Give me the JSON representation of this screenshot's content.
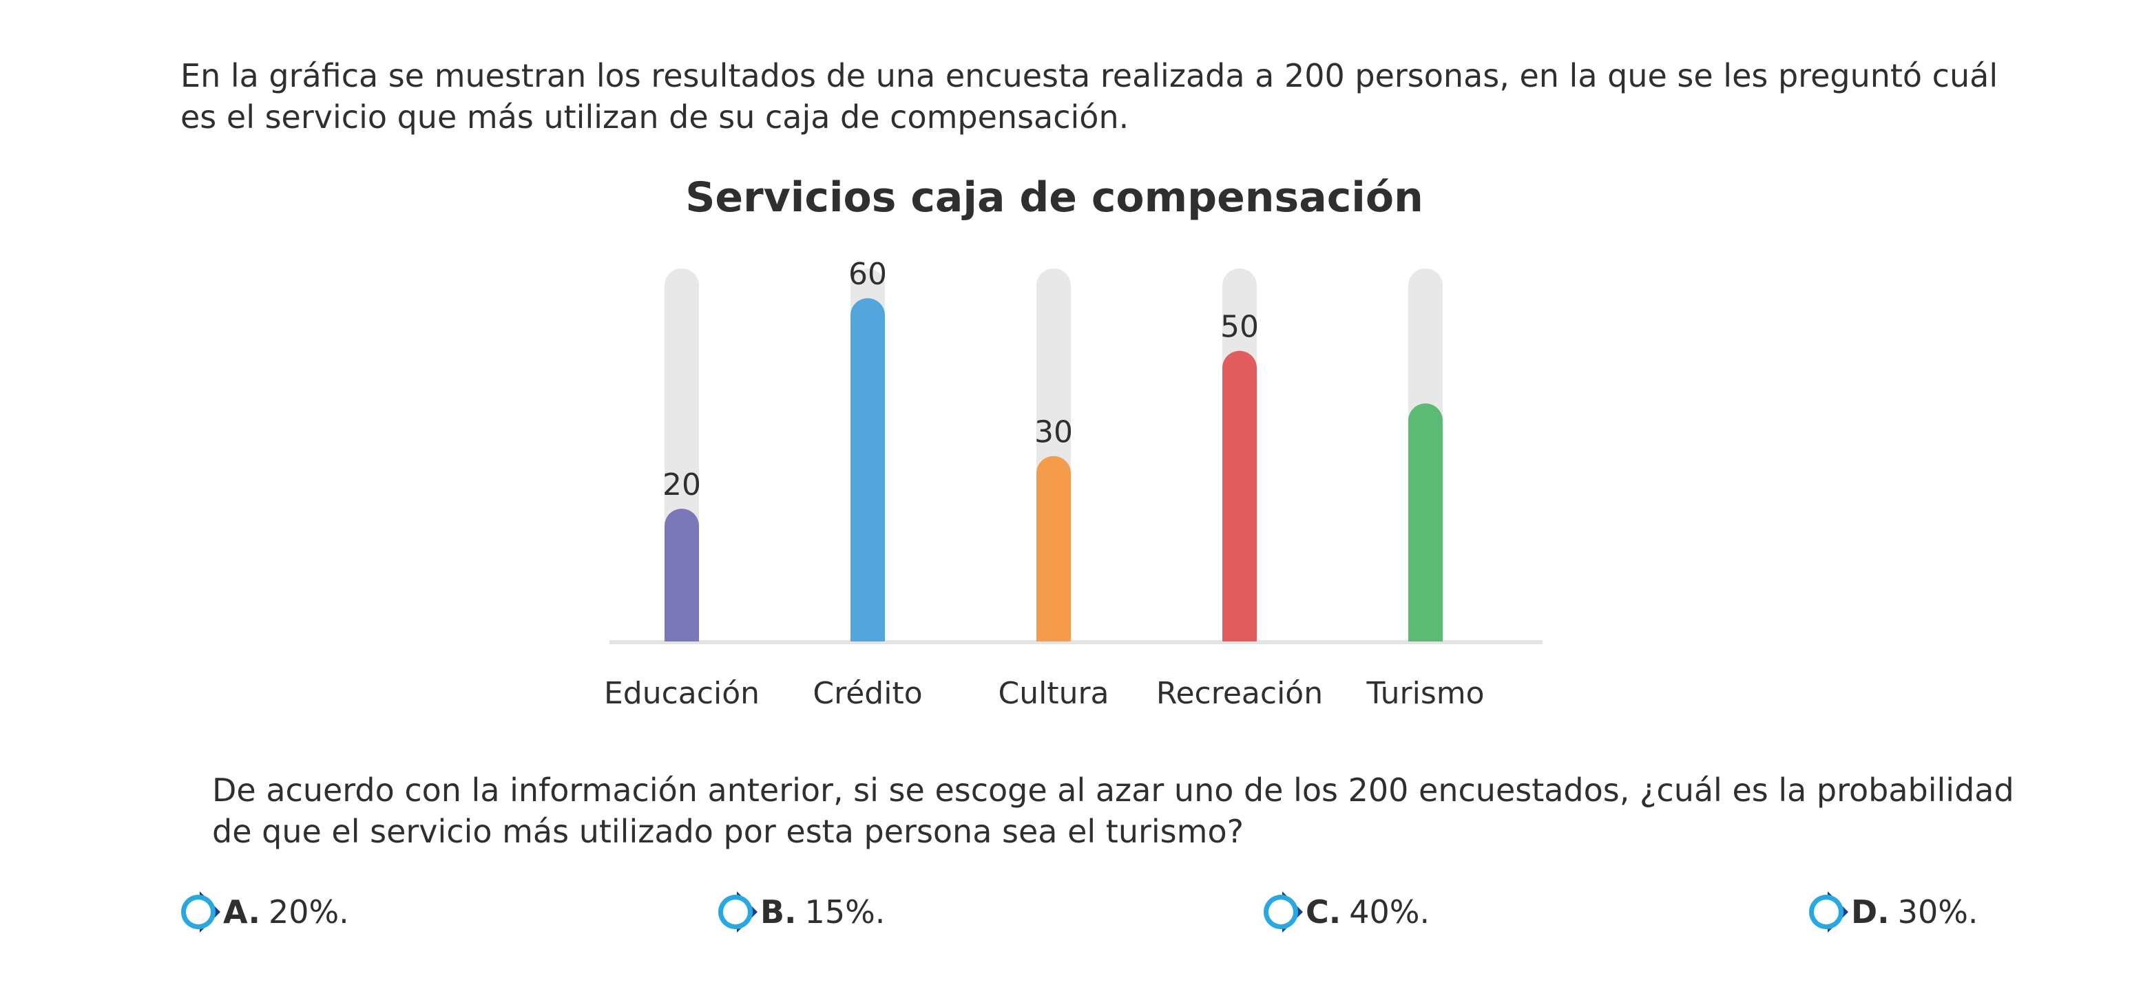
{
  "intro_text": "En la gráfica se muestran los resultados de una encuesta realizada a 200 personas, en la que se les preguntó cuál es el servicio que más utilizan de su caja de compensación.",
  "question_text": "De acuerdo con la información anterior, si se escoge al azar uno de los 200 encuestados, ¿cuál es la probabilidad de que el servicio más utilizado por esta persona sea el turismo?",
  "options": [
    {
      "letter": "A.",
      "text": "20%."
    },
    {
      "letter": "B.",
      "text": "15%."
    },
    {
      "letter": "C.",
      "text": "40%."
    },
    {
      "letter": "D.",
      "text": "30%."
    }
  ],
  "colors": {
    "track": "#e8e8e8",
    "baseline": "#e3e3e3",
    "radio_ring": "#29a8e0",
    "radio_accent": "#1b3f8f"
  },
  "chart_data": {
    "type": "bar",
    "title": "Servicios caja de compensación",
    "categories": [
      "Educación",
      "Crédito",
      "Cultura",
      "Recreación",
      "Turismo"
    ],
    "values": [
      20,
      60,
      30,
      50,
      40
    ],
    "data_labels": [
      "20",
      "60",
      "30",
      "50",
      ""
    ],
    "colors": [
      "#7b78b8",
      "#52a6dc",
      "#f59b4c",
      "#e05c5e",
      "#5bbb74"
    ],
    "ylim": [
      0,
      70
    ],
    "xlabel": "",
    "ylabel": "",
    "grid": false,
    "legend": "none"
  }
}
